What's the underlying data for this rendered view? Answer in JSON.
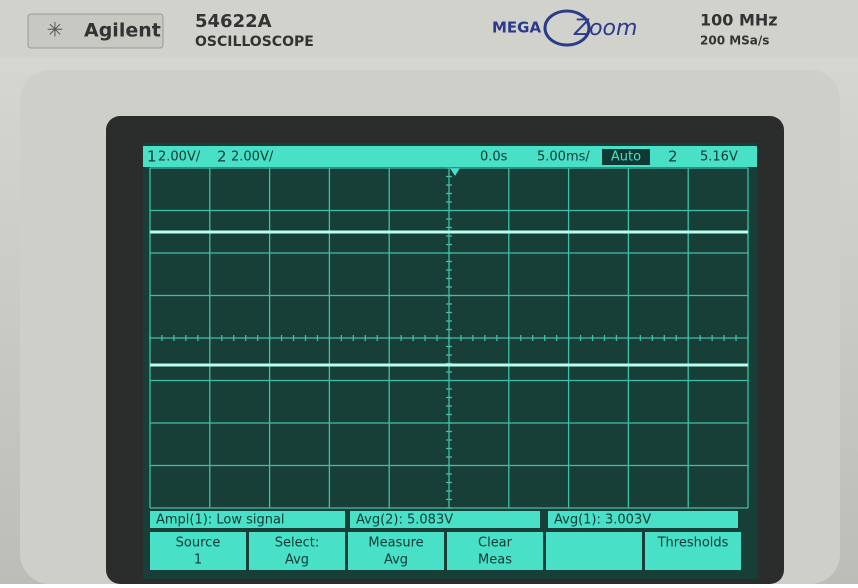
{
  "header": {
    "brand": "Agilent",
    "model": "54622A",
    "kind": "OSCILLOSCOPE",
    "logo_left": "MEGA",
    "logo_right": "Zoom",
    "bandwidth": "100 MHz",
    "sample_rate": "200 MSa/s"
  },
  "status": {
    "ch1": "1",
    "ch1_scale": "2.00V/",
    "ch2": "2",
    "ch2_scale": "2.00V/",
    "delay": "0.0s",
    "timebase": "5.00ms/",
    "mode": "Auto",
    "trigger_source": "2",
    "trigger_level": "5.16V"
  },
  "measurements": [
    "Ampl(1): Low signal",
    "Avg(2): 5.083V",
    "Avg(1): 3.003V"
  ],
  "softkeys": [
    {
      "line1": "Source",
      "line2": "1"
    },
    {
      "line1": "Select:",
      "line2": "Avg"
    },
    {
      "line1": "Measure",
      "line2": "Avg"
    },
    {
      "line1": "Clear",
      "line2": "Meas"
    },
    {},
    {
      "line1": "Thresholds"
    }
  ]
}
